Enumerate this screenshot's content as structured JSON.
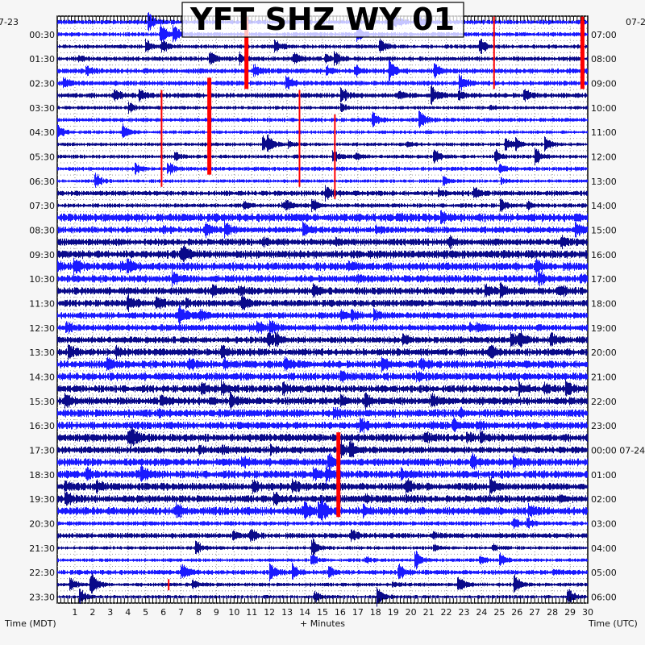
{
  "chart_data": {
    "type": "helicorder",
    "title": "YFT SHZ WY 01",
    "xlabel": "+ Minutes",
    "left_axis_label": "Time (MDT)",
    "right_axis_label": "Time (UTC)",
    "xlim": [
      0,
      30
    ],
    "x_ticks": [
      "1",
      "2",
      "3",
      "4",
      "5",
      "6",
      "7",
      "8",
      "9",
      "10",
      "11",
      "12",
      "13",
      "14",
      "15",
      "16",
      "17",
      "18",
      "19",
      "20",
      "21",
      "22",
      "23",
      "24",
      "25",
      "26",
      "27",
      "28",
      "29",
      "30"
    ],
    "row_count": 48,
    "row_minutes": 30,
    "left_top_date": "7-23",
    "right_top_date": "07-2",
    "left_labels": [
      "00:30",
      "01:30",
      "02:30",
      "03:30",
      "04:30",
      "05:30",
      "06:30",
      "07:30",
      "08:30",
      "09:30",
      "10:30",
      "11:30",
      "12:30",
      "13:30",
      "14:30",
      "15:30",
      "16:30",
      "17:30",
      "18:30",
      "19:30",
      "20:30",
      "21:30",
      "22:30",
      "23:30"
    ],
    "right_labels": [
      "07:00",
      "08:00",
      "09:00",
      "10:00",
      "11:00",
      "12:00",
      "13:00",
      "14:00",
      "15:00",
      "16:00",
      "17:00",
      "18:00",
      "19:00",
      "20:00",
      "21:00",
      "22:00",
      "23:00",
      "00:00 07-24",
      "01:00",
      "02:00",
      "03:00",
      "04:00",
      "05:00",
      "06:00"
    ],
    "trace_colors": [
      "#1a1aff",
      "#1a1aff",
      "#0a0a8a",
      "#0a0a8a"
    ],
    "event_color": "#ff0000",
    "event_markers": [
      {
        "minute": 5.9,
        "row_start": 6,
        "row_end": 13,
        "weight": "thin"
      },
      {
        "minute": 8.6,
        "row_start": 5,
        "row_end": 12,
        "weight": "thick"
      },
      {
        "minute": 10.7,
        "row_start": 0,
        "row_end": 5,
        "weight": "thick"
      },
      {
        "minute": 13.7,
        "row_start": 6,
        "row_end": 13,
        "weight": "thin"
      },
      {
        "minute": 15.7,
        "row_start": 8,
        "row_end": 14,
        "weight": "thin"
      },
      {
        "minute": 24.7,
        "row_start": 0,
        "row_end": 5,
        "weight": "thin"
      },
      {
        "minute": 29.7,
        "row_start": 0,
        "row_end": 5,
        "weight": "thick"
      },
      {
        "minute": 15.9,
        "row_start": 34,
        "row_end": 40,
        "weight": "thick"
      },
      {
        "minute": 6.3,
        "row_start": 46,
        "row_end": 46,
        "weight": "thin"
      }
    ]
  }
}
